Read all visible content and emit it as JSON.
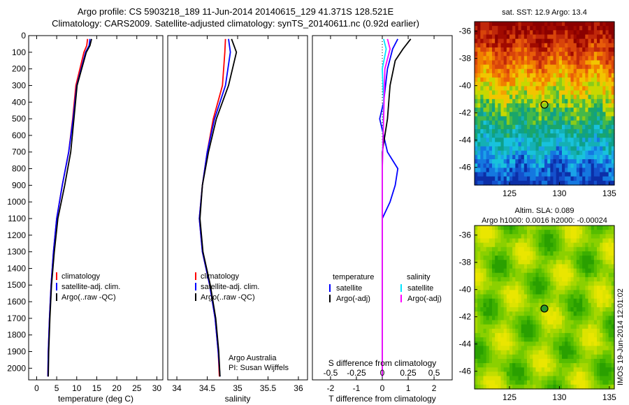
{
  "header": {
    "line1": "Argo profile: CS 5903218_189 11-Jun-2014 20140615_129 41.371S 128.521E",
    "line2": "Climatology: CARS2009. Satellite-adjusted climatology: synTS_20140611.nc (0.92d earlier)"
  },
  "colors": {
    "climatology": "#ff0000",
    "satellite": "#0000ff",
    "argo": "#000000",
    "sal_satellite": "#00e5ff",
    "sal_argo": "#ff00ff"
  },
  "credit": {
    "line1": "Argo Australia",
    "line2": "PI: Susan Wijffels"
  },
  "side_stamp": "IMOS 19-Jun-2014 12:01:02",
  "chart_data": [
    {
      "type": "line",
      "xlabel": "temperature (deg C)",
      "xticks": [
        "0",
        "5",
        "10",
        "15",
        "20",
        "25",
        "30"
      ],
      "xlim": [
        -2,
        31.5
      ],
      "ylim": [
        2070,
        0
      ],
      "yticks": [
        "0",
        "100",
        "200",
        "300",
        "400",
        "500",
        "600",
        "700",
        "800",
        "900",
        "1000",
        "1100",
        "1200",
        "1300",
        "1400",
        "1500",
        "1600",
        "1700",
        "1800",
        "1900",
        "2000"
      ],
      "legend": [
        "climatology",
        "satellite-adj. clim.",
        "Argo(..raw -QC)"
      ],
      "series": [
        {
          "name": "climatology",
          "color": "#ff0000",
          "points": [
            [
              12.7,
              20
            ],
            [
              12.5,
              60
            ],
            [
              11.8,
              100
            ],
            [
              9.8,
              300
            ],
            [
              9.0,
              500
            ],
            [
              8.0,
              700
            ],
            [
              6.4,
              900
            ],
            [
              5.0,
              1100
            ],
            [
              4.2,
              1300
            ],
            [
              3.6,
              1500
            ],
            [
              3.2,
              1700
            ],
            [
              2.9,
              1900
            ],
            [
              2.8,
              2050
            ]
          ]
        },
        {
          "name": "satellite-adj. clim.",
          "color": "#0000ff",
          "points": [
            [
              13.3,
              20
            ],
            [
              13.1,
              60
            ],
            [
              12.2,
              100
            ],
            [
              10.0,
              300
            ],
            [
              9.1,
              500
            ],
            [
              8.0,
              700
            ],
            [
              6.4,
              900
            ],
            [
              5.0,
              1100
            ],
            [
              4.2,
              1300
            ],
            [
              3.6,
              1500
            ],
            [
              3.2,
              1700
            ],
            [
              2.9,
              1900
            ],
            [
              2.8,
              2050
            ]
          ]
        },
        {
          "name": "Argo(..raw -QC)",
          "color": "#000000",
          "points": [
            [
              13.7,
              20
            ],
            [
              13.3,
              60
            ],
            [
              12.4,
              100
            ],
            [
              10.1,
              300
            ],
            [
              9.3,
              500
            ],
            [
              8.5,
              700
            ],
            [
              7.0,
              900
            ],
            [
              5.3,
              1100
            ],
            [
              4.4,
              1300
            ],
            [
              3.7,
              1500
            ],
            [
              3.3,
              1700
            ],
            [
              3.0,
              1900
            ],
            [
              2.9,
              2050
            ]
          ]
        }
      ]
    },
    {
      "type": "line",
      "xlabel": "salinity",
      "xticks": [
        "34",
        "34.5",
        "35",
        "35.5",
        "36"
      ],
      "xlim": [
        33.85,
        36.15
      ],
      "ylim": [
        2070,
        0
      ],
      "legend": [
        "climatology",
        "satellite-adj. clim.",
        "Argo(..raw -QC)"
      ],
      "series": [
        {
          "name": "climatology",
          "color": "#ff0000",
          "points": [
            [
              34.8,
              20
            ],
            [
              34.79,
              100
            ],
            [
              34.75,
              300
            ],
            [
              34.6,
              500
            ],
            [
              34.5,
              700
            ],
            [
              34.42,
              900
            ],
            [
              34.37,
              1100
            ],
            [
              34.42,
              1300
            ],
            [
              34.54,
              1500
            ],
            [
              34.63,
              1700
            ],
            [
              34.68,
              1900
            ],
            [
              34.7,
              2050
            ]
          ]
        },
        {
          "name": "satellite-adj. clim.",
          "color": "#0000ff",
          "points": [
            [
              34.85,
              20
            ],
            [
              34.88,
              100
            ],
            [
              34.8,
              300
            ],
            [
              34.62,
              500
            ],
            [
              34.5,
              700
            ],
            [
              34.42,
              900
            ],
            [
              34.37,
              1100
            ],
            [
              34.42,
              1300
            ],
            [
              34.54,
              1500
            ],
            [
              34.63,
              1700
            ],
            [
              34.68,
              1900
            ],
            [
              34.71,
              2050
            ]
          ]
        },
        {
          "name": "Argo(..raw -QC)",
          "color": "#000000",
          "points": [
            [
              34.9,
              20
            ],
            [
              34.98,
              100
            ],
            [
              34.85,
              300
            ],
            [
              34.65,
              500
            ],
            [
              34.52,
              700
            ],
            [
              34.42,
              900
            ],
            [
              34.38,
              1100
            ],
            [
              34.43,
              1300
            ],
            [
              34.55,
              1500
            ],
            [
              34.64,
              1700
            ],
            [
              34.69,
              1900
            ],
            [
              34.71,
              2050
            ]
          ]
        }
      ]
    },
    {
      "type": "line",
      "xlabel": "T difference from climatology",
      "xticks": [
        "-2",
        "-1",
        "0",
        "1",
        "2"
      ],
      "xlim": [
        -2.7,
        2.7
      ],
      "top_axis_label": "S difference from climatology",
      "top_ticks": [
        "-0.5",
        "-0.25",
        "0",
        "0.25",
        "0.5"
      ],
      "top_xlim": [
        -0.675,
        0.675
      ],
      "ylim": [
        2070,
        0
      ],
      "legend_groups": [
        {
          "heading": "temperature",
          "items": [
            "satellite",
            "Argo(-adj)"
          ]
        },
        {
          "heading": "salinity",
          "items": [
            "satellite",
            "Argo(-adj)"
          ]
        }
      ],
      "series": [
        {
          "name": "satellite",
          "group": "temperature",
          "color": "#0000ff",
          "points": [
            [
              0.6,
              20
            ],
            [
              0.4,
              80
            ],
            [
              0.2,
              200
            ],
            [
              0.05,
              400
            ],
            [
              -0.1,
              500
            ],
            [
              0.2,
              700
            ],
            [
              0.6,
              800
            ],
            [
              0.5,
              900
            ],
            [
              0.3,
              1000
            ],
            [
              0.0,
              1100
            ],
            [
              0.0,
              2050
            ]
          ]
        },
        {
          "name": "Argo(-adj)",
          "group": "temperature",
          "color": "#000000",
          "points": [
            [
              1.1,
              20
            ],
            [
              0.8,
              80
            ],
            [
              0.5,
              150
            ],
            [
              0.3,
              300
            ],
            [
              0.2,
              500
            ],
            [
              0.0,
              700
            ],
            [
              0.0,
              2050
            ]
          ]
        },
        {
          "name": "satellite",
          "group": "salinity",
          "color": "#00e5ff",
          "points": [
            [
              0.05,
              20
            ],
            [
              0.15,
              80
            ],
            [
              0.0,
              200
            ],
            [
              0.05,
              400
            ],
            [
              0.0,
              800
            ],
            [
              0.0,
              2050
            ]
          ]
        },
        {
          "name": "Argo(-adj)",
          "group": "salinity",
          "color": "#ff00ff",
          "points": [
            [
              0.2,
              20
            ],
            [
              0.3,
              80
            ],
            [
              0.1,
              200
            ],
            [
              0.05,
              500
            ],
            [
              0.0,
              800
            ],
            [
              0.0,
              2050
            ]
          ]
        }
      ]
    },
    {
      "type": "heatmap",
      "title": "sat. SST: 12.9 Argo: 13.4",
      "xticks": [
        "125",
        "130",
        "135"
      ],
      "yticks": [
        "-36",
        "-38",
        "-40",
        "-42",
        "-44",
        "-46"
      ],
      "xlim": [
        121.5,
        135.5
      ],
      "ylim": [
        -47.3,
        -35.3
      ],
      "marker": {
        "lon": 128.5,
        "lat": -41.4
      }
    },
    {
      "type": "heatmap",
      "title": "Altim. SLA: 0.089",
      "subtitle": "Argo h1000: 0.0016 h2000: -0.00024",
      "xticks": [
        "125",
        "130",
        "135"
      ],
      "yticks": [
        "-36",
        "-38",
        "-40",
        "-42",
        "-44",
        "-46"
      ],
      "xlim": [
        121.5,
        135.5
      ],
      "ylim": [
        -47.3,
        -35.3
      ],
      "marker": {
        "lon": 128.5,
        "lat": -41.4
      }
    }
  ]
}
